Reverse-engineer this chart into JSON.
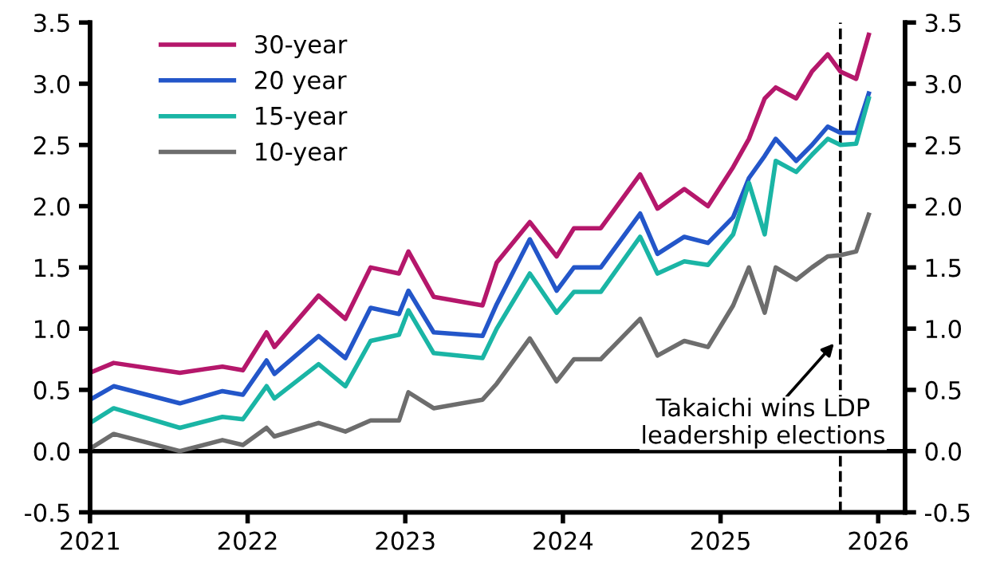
{
  "chart_data": {
    "type": "line",
    "x": [
      2021.0,
      2021.15,
      2021.57,
      2021.84,
      2021.97,
      2022.12,
      2022.17,
      2022.45,
      2022.62,
      2022.78,
      2022.96,
      2023.02,
      2023.18,
      2023.49,
      2023.58,
      2023.79,
      2023.96,
      2024.07,
      2024.24,
      2024.49,
      2024.6,
      2024.77,
      2024.92,
      2025.08,
      2025.18,
      2025.28,
      2025.35,
      2025.48,
      2025.58,
      2025.68,
      2025.76,
      2025.86,
      2025.94
    ],
    "series": [
      {
        "name": "30-year",
        "color": "#b5176b",
        "values": [
          0.64,
          0.72,
          0.64,
          0.69,
          0.66,
          0.97,
          0.85,
          1.27,
          1.08,
          1.5,
          1.45,
          1.63,
          1.26,
          1.19,
          1.54,
          1.87,
          1.59,
          1.82,
          1.82,
          2.26,
          1.98,
          2.14,
          2.0,
          2.32,
          2.55,
          2.88,
          2.97,
          2.88,
          3.1,
          3.24,
          3.1,
          3.04,
          3.4
        ]
      },
      {
        "name": "20 year",
        "color": "#2356c9",
        "values": [
          0.42,
          0.53,
          0.39,
          0.49,
          0.46,
          0.74,
          0.63,
          0.94,
          0.76,
          1.17,
          1.12,
          1.31,
          0.97,
          0.94,
          1.2,
          1.73,
          1.31,
          1.5,
          1.5,
          1.94,
          1.61,
          1.75,
          1.7,
          1.91,
          2.23,
          2.41,
          2.55,
          2.37,
          2.5,
          2.65,
          2.6,
          2.6,
          2.92
        ]
      },
      {
        "name": "15-year",
        "color": "#1ab5a5",
        "values": [
          0.23,
          0.35,
          0.19,
          0.28,
          0.26,
          0.53,
          0.43,
          0.71,
          0.53,
          0.9,
          0.95,
          1.15,
          0.8,
          0.76,
          1.0,
          1.45,
          1.13,
          1.3,
          1.3,
          1.75,
          1.45,
          1.55,
          1.52,
          1.77,
          2.19,
          1.77,
          2.37,
          2.28,
          2.42,
          2.55,
          2.5,
          2.51,
          2.88
        ]
      },
      {
        "name": "10-year",
        "color": "#6d6d6d",
        "values": [
          0.02,
          0.14,
          0.0,
          0.09,
          0.05,
          0.19,
          0.12,
          0.23,
          0.16,
          0.25,
          0.25,
          0.48,
          0.35,
          0.42,
          0.55,
          0.92,
          0.57,
          0.75,
          0.75,
          1.08,
          0.78,
          0.9,
          0.85,
          1.19,
          1.5,
          1.13,
          1.5,
          1.4,
          1.5,
          1.59,
          1.6,
          1.63,
          1.93
        ]
      }
    ],
    "xlim": [
      2021,
      2026.17
    ],
    "xticks": [
      2021,
      2022,
      2023,
      2024,
      2025,
      2026
    ],
    "ylim": [
      -0.5,
      3.5
    ],
    "yticks": [
      {
        "value": -0.5,
        "label": "-0.5"
      },
      {
        "value": 0,
        "label": "0.0"
      },
      {
        "value": 0.5,
        "label": "0.5"
      },
      {
        "value": 1,
        "label": "1.0"
      },
      {
        "value": 1.5,
        "label": "1.5"
      },
      {
        "value": 2,
        "label": "2.0"
      },
      {
        "value": 2.5,
        "label": "2.5"
      },
      {
        "value": 3,
        "label": "3.0"
      },
      {
        "value": 3.5,
        "label": "3.5"
      }
    ],
    "y2lim": [
      -0.5,
      3.5
    ],
    "y2ticks": [
      {
        "value": -0.5,
        "label": "-0.5"
      },
      {
        "value": 0,
        "label": "0.0"
      },
      {
        "value": 0.5,
        "label": "0.5"
      },
      {
        "value": 1,
        "label": "1.0"
      },
      {
        "value": 1.5,
        "label": "1.5"
      },
      {
        "value": 2,
        "label": "2.0"
      },
      {
        "value": 2.5,
        "label": "2.5"
      },
      {
        "value": 3,
        "label": "3.0"
      },
      {
        "value": 3.5,
        "label": "3.5"
      }
    ],
    "ref_lines": [
      {
        "axis": "y",
        "value": 0,
        "color": "#000000",
        "line_style": "solid"
      },
      {
        "axis": "x",
        "value": 2025.76,
        "color": "#000000",
        "line_style": "dashed"
      }
    ],
    "annotations": [
      {
        "text": "Takaichi wins LDP\nleadership elections",
        "x": 2025.72,
        "y": 0.88
      }
    ],
    "legend": "top left",
    "grid": false,
    "marker": "none",
    "line_style": "solid"
  }
}
